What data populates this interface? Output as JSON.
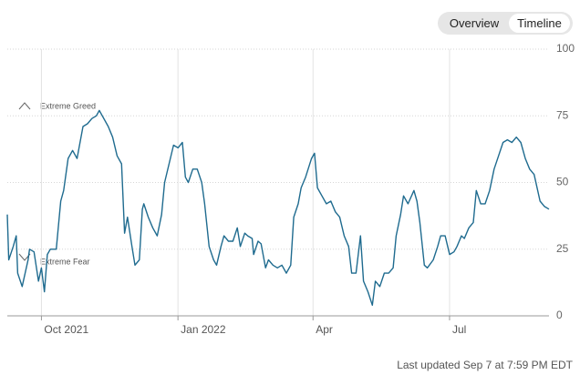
{
  "tabs": [
    "Overview",
    "Timeline"
  ],
  "footer": "Last updated Sep 7 at 7:59 PM EDT",
  "chart_data": {
    "type": "line",
    "color": "#1f6b8f",
    "annotations": [
      "Extreme Greed",
      "Extreme Fear"
    ],
    "x": [
      0,
      1,
      4,
      6,
      7,
      10,
      14,
      15,
      18,
      21,
      23,
      25,
      27,
      29,
      33,
      36,
      38,
      41,
      44,
      47,
      51,
      54,
      57,
      60,
      62,
      64,
      68,
      71,
      74,
      77,
      79,
      81,
      84,
      86,
      89,
      91,
      92,
      95,
      98,
      101,
      104,
      106,
      109,
      112,
      115,
      118,
      120,
      122,
      125,
      128,
      131,
      133,
      136,
      139,
      141,
      144,
      146,
      149,
      152,
      155,
      157,
      160,
      162,
      165,
      166,
      169,
      171,
      174,
      176,
      179,
      182,
      185,
      188,
      191,
      193,
      196,
      198,
      201,
      205,
      207,
      209,
      212,
      215,
      218,
      221,
      224,
      227,
      230,
      232,
      235,
      238,
      240,
      243,
      246,
      248,
      251,
      254,
      257,
      260,
      262,
      265,
      267,
      270,
      274,
      276,
      278,
      281,
      283,
      287,
      290,
      292,
      295,
      298,
      301,
      303,
      306,
      308,
      311,
      314,
      316,
      319,
      322,
      325,
      328,
      331,
      334,
      337,
      340,
      343,
      346,
      349,
      352,
      355,
      359,
      362,
      365
    ],
    "values": [
      38,
      21,
      26,
      30,
      16,
      11,
      21,
      25,
      24,
      13,
      18,
      9,
      23,
      25,
      25,
      43,
      47,
      59,
      62,
      59,
      71,
      72,
      74,
      75,
      77,
      75,
      71,
      67,
      60,
      57,
      31,
      37,
      26,
      19,
      21,
      40,
      42,
      37,
      33,
      30,
      38,
      50,
      57,
      64,
      63,
      65,
      52,
      50,
      55,
      55,
      50,
      42,
      26,
      21,
      19,
      26,
      30,
      28,
      28,
      33,
      26,
      31,
      30,
      29,
      23,
      28,
      27,
      18,
      21,
      19,
      18,
      19,
      16,
      19,
      37,
      42,
      48,
      52,
      59,
      61,
      48,
      45,
      42,
      43,
      39,
      37,
      30,
      26,
      16,
      16,
      30,
      13,
      9,
      4,
      13,
      11,
      16,
      16,
      18,
      30,
      38,
      45,
      42,
      47,
      43,
      35,
      19,
      18,
      21,
      26,
      30,
      30,
      23,
      24,
      26,
      30,
      29,
      33,
      35,
      47,
      42,
      42,
      47,
      55,
      60,
      65,
      66,
      65,
      67,
      65,
      59,
      55,
      53,
      43,
      41,
      40
    ],
    "xlim": [
      0,
      365
    ],
    "xticks": [
      {
        "value": 23,
        "label": "Oct 2021"
      },
      {
        "value": 115,
        "label": "Jan 2022"
      },
      {
        "value": 206,
        "label": "Apr"
      },
      {
        "value": 298,
        "label": "Jul"
      }
    ],
    "ylim": [
      0,
      100
    ],
    "yticks": [
      0,
      25,
      50,
      75,
      100
    ],
    "grid": true
  }
}
